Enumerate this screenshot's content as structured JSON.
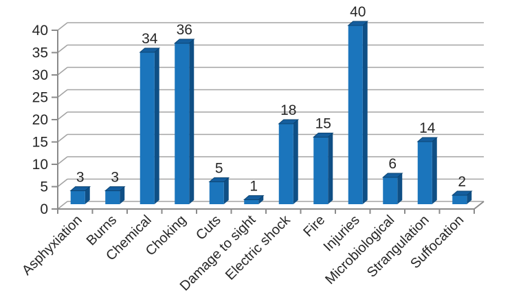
{
  "chart_data": {
    "type": "bar",
    "style": "3d-column",
    "title": "",
    "categories": [
      "Asphyxiation",
      "Burns",
      "Chemical",
      "Choking",
      "Cuts",
      "Damage to sight",
      "Electric shock",
      "Fire",
      "Injuries",
      "Microbiological",
      "Strangulation",
      "Suffocation"
    ],
    "values": [
      3,
      3,
      34,
      36,
      5,
      1,
      18,
      15,
      40,
      6,
      14,
      2
    ],
    "xlabel": "",
    "ylabel": "",
    "ylim": [
      0,
      40
    ],
    "ytick_step": 5,
    "ytick_labels": [
      "0",
      "5",
      "10",
      "15",
      "20",
      "25",
      "30",
      "35",
      "40"
    ],
    "grid": true,
    "legend_position": "none",
    "data_labels": true,
    "category_label_rotation_deg": 45,
    "colors": {
      "bar_front": "#1B75BC",
      "bar_top": "#155E9E",
      "bar_side": "#0F4F85",
      "bar_edge": "#0C4573",
      "gridline": "#A3A3A3",
      "axis": "#8A8A8A",
      "text": "#262626",
      "background": "#FFFFFF"
    }
  }
}
